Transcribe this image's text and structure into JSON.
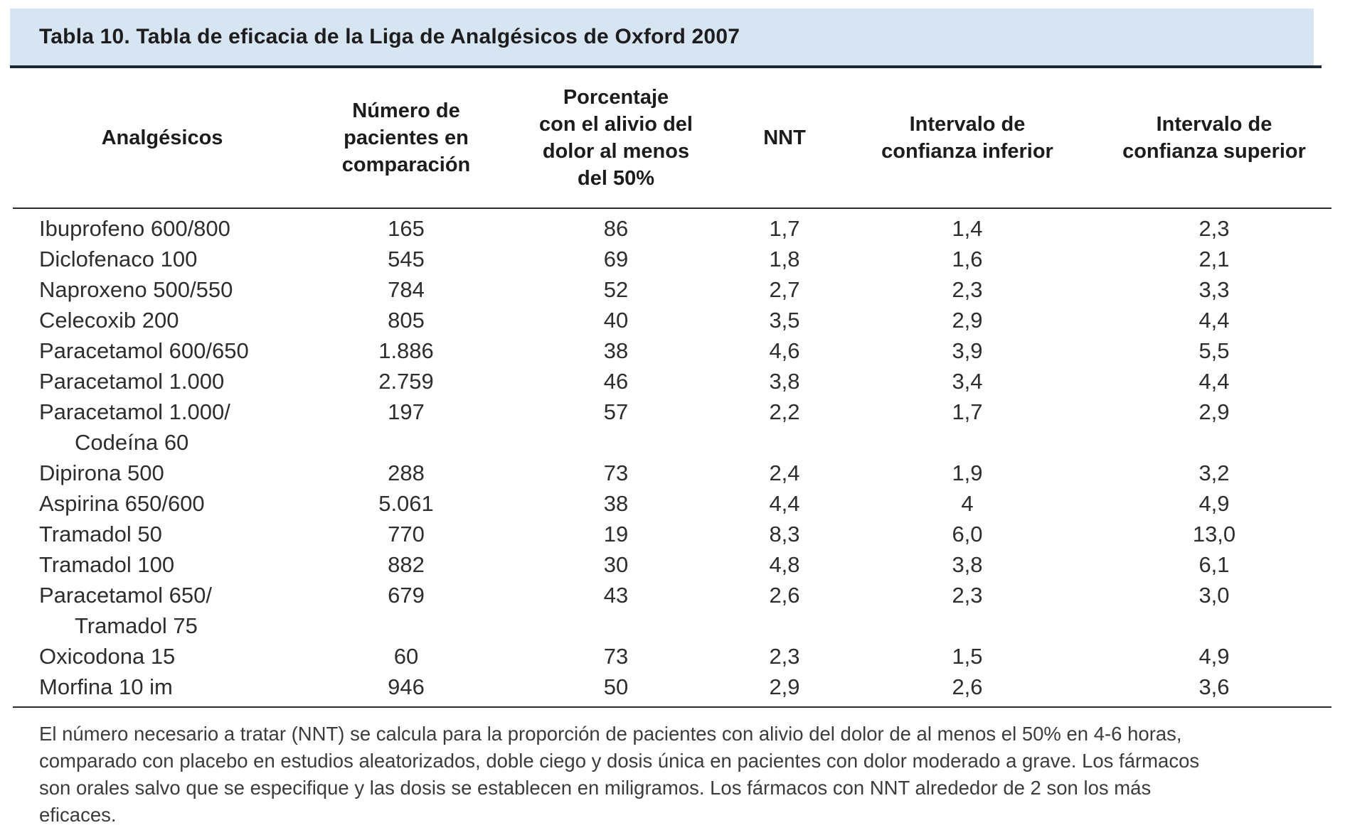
{
  "title": "Tabla 10. Tabla de eficacia de la Liga de Analgésicos de Oxford 2007",
  "accent_colors": {
    "title_band_bg": "#d6e5f1",
    "rule_dark": "#1c2733",
    "text": "#2e2e2e"
  },
  "table": {
    "columns": [
      {
        "lines": [
          "Analgésicos"
        ]
      },
      {
        "lines": [
          "Número de",
          "pacientes en",
          "comparación"
        ]
      },
      {
        "lines": [
          "Porcentaje",
          "con el alivio del",
          "dolor al menos",
          "del 50%"
        ]
      },
      {
        "lines": [
          "NNT"
        ]
      },
      {
        "lines": [
          "Intervalo de",
          "confianza inferior"
        ]
      },
      {
        "lines": [
          "Intervalo de",
          "confianza superior"
        ]
      }
    ],
    "rows": [
      {
        "name": "Ibuprofeno 600/800",
        "name2": "",
        "patients": "165",
        "pct": "86",
        "nnt": "1,7",
        "low": "1,4",
        "high": "2,3"
      },
      {
        "name": "Diclofenaco 100",
        "name2": "",
        "patients": "545",
        "pct": "69",
        "nnt": "1,8",
        "low": "1,6",
        "high": "2,1"
      },
      {
        "name": "Naproxeno 500/550",
        "name2": "",
        "patients": "784",
        "pct": "52",
        "nnt": "2,7",
        "low": "2,3",
        "high": "3,3"
      },
      {
        "name": "Celecoxib 200",
        "name2": "",
        "patients": "805",
        "pct": "40",
        "nnt": "3,5",
        "low": "2,9",
        "high": "4,4"
      },
      {
        "name": "Paracetamol 600/650",
        "name2": "",
        "patients": "1.886",
        "pct": "38",
        "nnt": "4,6",
        "low": "3,9",
        "high": "5,5"
      },
      {
        "name": "Paracetamol 1.000",
        "name2": "",
        "patients": "2.759",
        "pct": "46",
        "nnt": "3,8",
        "low": "3,4",
        "high": "4,4"
      },
      {
        "name": "Paracetamol 1.000/",
        "name2": "Codeína 60",
        "patients": "197",
        "pct": "57",
        "nnt": "2,2",
        "low": "1,7",
        "high": "2,9"
      },
      {
        "name": "Dipirona 500",
        "name2": "",
        "patients": "288",
        "pct": "73",
        "nnt": "2,4",
        "low": "1,9",
        "high": "3,2"
      },
      {
        "name": "Aspirina 650/600",
        "name2": "",
        "patients": "5.061",
        "pct": "38",
        "nnt": "4,4",
        "low": "4",
        "high": "4,9"
      },
      {
        "name": "Tramadol 50",
        "name2": "",
        "patients": "770",
        "pct": "19",
        "nnt": "8,3",
        "low": "6,0",
        "high": "13,0"
      },
      {
        "name": "Tramadol 100",
        "name2": "",
        "patients": "882",
        "pct": "30",
        "nnt": "4,8",
        "low": "3,8",
        "high": "6,1"
      },
      {
        "name": "Paracetamol 650/",
        "name2": "Tramadol 75",
        "patients": "679",
        "pct": "43",
        "nnt": "2,6",
        "low": "2,3",
        "high": "3,0"
      },
      {
        "name": "Oxicodona 15",
        "name2": "",
        "patients": "60",
        "pct": "73",
        "nnt": "2,3",
        "low": "1,5",
        "high": "4,9"
      },
      {
        "name": "Morfina 10 im",
        "name2": "",
        "patients": "946",
        "pct": "50",
        "nnt": "2,9",
        "low": "2,6",
        "high": "3,6"
      }
    ]
  },
  "footnote": {
    "lines": [
      "El número necesario a tratar (NNT) se calcula para la proporción de pacientes con alivio del dolor de al menos el 50% en 4-6 horas,",
      "comparado con placebo en estudios aleatorizados, doble ciego y dosis única en pacientes con dolor moderado a grave. Los fármacos",
      "son orales salvo que se especifique y las dosis se establecen en miligramos. Los fármacos con NNT alrededor de 2 son los más",
      "eficaces."
    ]
  }
}
